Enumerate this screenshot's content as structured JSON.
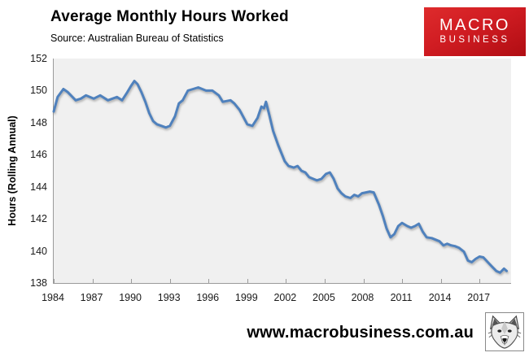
{
  "header": {
    "title": "Average Monthly Hours Worked",
    "source": "Source: Australian Bureau of Statistics"
  },
  "brand_logo": {
    "line1": "MACRO",
    "line2": "BUSINESS",
    "bg_color": "#cc1b21",
    "text_color": "#ffffff"
  },
  "footer": {
    "url": "www.macrobusiness.com.au",
    "logo": "fox-head-logo"
  },
  "chart_data": {
    "type": "line",
    "title": "Average Monthly Hours Worked",
    "source": "Source: Australian Bureau of Statistics",
    "xlabel": "",
    "ylabel": "Hours (Rolling Annual)",
    "xlim": [
      1984,
      2019.45
    ],
    "ylim": [
      138,
      152
    ],
    "xticks": [
      1984,
      1987,
      1990,
      1993,
      1996,
      1999,
      2002,
      2005,
      2008,
      2011,
      2014,
      2017
    ],
    "yticks": [
      152,
      150,
      148,
      146,
      144,
      142,
      140,
      138
    ],
    "grid": false,
    "legend": "none",
    "plot_background": "#f0f0f0",
    "axis_color": "#9b9b9b",
    "line_color": "#4f81bd",
    "series": [
      {
        "name": "Average monthly hours worked (rolling annual)",
        "points": [
          [
            1984.0,
            148.7
          ],
          [
            1984.3,
            149.6
          ],
          [
            1984.75,
            150.1
          ],
          [
            1985.1,
            149.9
          ],
          [
            1985.7,
            149.4
          ],
          [
            1986.1,
            149.5
          ],
          [
            1986.5,
            149.7
          ],
          [
            1987.1,
            149.5
          ],
          [
            1987.6,
            149.7
          ],
          [
            1988.2,
            149.4
          ],
          [
            1988.9,
            149.6
          ],
          [
            1989.3,
            149.4
          ],
          [
            1989.7,
            149.9
          ],
          [
            1990.0,
            150.3
          ],
          [
            1990.25,
            150.6
          ],
          [
            1990.5,
            150.4
          ],
          [
            1990.8,
            149.9
          ],
          [
            1991.1,
            149.3
          ],
          [
            1991.4,
            148.6
          ],
          [
            1991.7,
            148.1
          ],
          [
            1992.0,
            147.9
          ],
          [
            1992.35,
            147.8
          ],
          [
            1992.7,
            147.7
          ],
          [
            1993.0,
            147.8
          ],
          [
            1993.4,
            148.4
          ],
          [
            1993.7,
            149.2
          ],
          [
            1994.0,
            149.4
          ],
          [
            1994.4,
            150.0
          ],
          [
            1994.8,
            150.1
          ],
          [
            1995.2,
            150.2
          ],
          [
            1995.8,
            150.0
          ],
          [
            1996.3,
            150.0
          ],
          [
            1996.8,
            149.7
          ],
          [
            1997.1,
            149.3
          ],
          [
            1997.7,
            149.4
          ],
          [
            1998.0,
            149.2
          ],
          [
            1998.4,
            148.8
          ],
          [
            1999.0,
            147.9
          ],
          [
            1999.4,
            147.8
          ],
          [
            1999.8,
            148.3
          ],
          [
            2000.1,
            149.0
          ],
          [
            2000.3,
            148.9
          ],
          [
            2000.45,
            149.3
          ],
          [
            2000.7,
            148.5
          ],
          [
            2001.0,
            147.5
          ],
          [
            2001.4,
            146.6
          ],
          [
            2001.9,
            145.6
          ],
          [
            2002.2,
            145.3
          ],
          [
            2002.6,
            145.2
          ],
          [
            2002.9,
            145.3
          ],
          [
            2003.2,
            145.0
          ],
          [
            2003.5,
            144.9
          ],
          [
            2003.8,
            144.6
          ],
          [
            2004.1,
            144.5
          ],
          [
            2004.4,
            144.4
          ],
          [
            2004.75,
            144.5
          ],
          [
            2005.1,
            144.8
          ],
          [
            2005.4,
            144.9
          ],
          [
            2005.7,
            144.5
          ],
          [
            2006.0,
            143.9
          ],
          [
            2006.3,
            143.6
          ],
          [
            2006.6,
            143.4
          ],
          [
            2007.0,
            143.3
          ],
          [
            2007.3,
            143.5
          ],
          [
            2007.6,
            143.4
          ],
          [
            2007.9,
            143.6
          ],
          [
            2008.2,
            143.65
          ],
          [
            2008.5,
            143.7
          ],
          [
            2008.8,
            143.65
          ],
          [
            2009.2,
            142.9
          ],
          [
            2009.5,
            142.2
          ],
          [
            2009.8,
            141.4
          ],
          [
            2010.1,
            140.85
          ],
          [
            2010.4,
            141.05
          ],
          [
            2010.7,
            141.55
          ],
          [
            2011.0,
            141.75
          ],
          [
            2011.4,
            141.55
          ],
          [
            2011.7,
            141.45
          ],
          [
            2012.0,
            141.55
          ],
          [
            2012.3,
            141.7
          ],
          [
            2012.6,
            141.2
          ],
          [
            2012.9,
            140.85
          ],
          [
            2013.3,
            140.8
          ],
          [
            2013.9,
            140.6
          ],
          [
            2014.2,
            140.35
          ],
          [
            2014.5,
            140.45
          ],
          [
            2014.8,
            140.35
          ],
          [
            2015.1,
            140.3
          ],
          [
            2015.4,
            140.2
          ],
          [
            2015.8,
            139.95
          ],
          [
            2016.1,
            139.4
          ],
          [
            2016.4,
            139.3
          ],
          [
            2016.7,
            139.5
          ],
          [
            2017.0,
            139.65
          ],
          [
            2017.3,
            139.6
          ],
          [
            2017.7,
            139.25
          ],
          [
            2018.0,
            139.0
          ],
          [
            2018.3,
            138.75
          ],
          [
            2018.6,
            138.65
          ],
          [
            2018.9,
            138.9
          ],
          [
            2019.1,
            138.75
          ]
        ]
      }
    ]
  }
}
